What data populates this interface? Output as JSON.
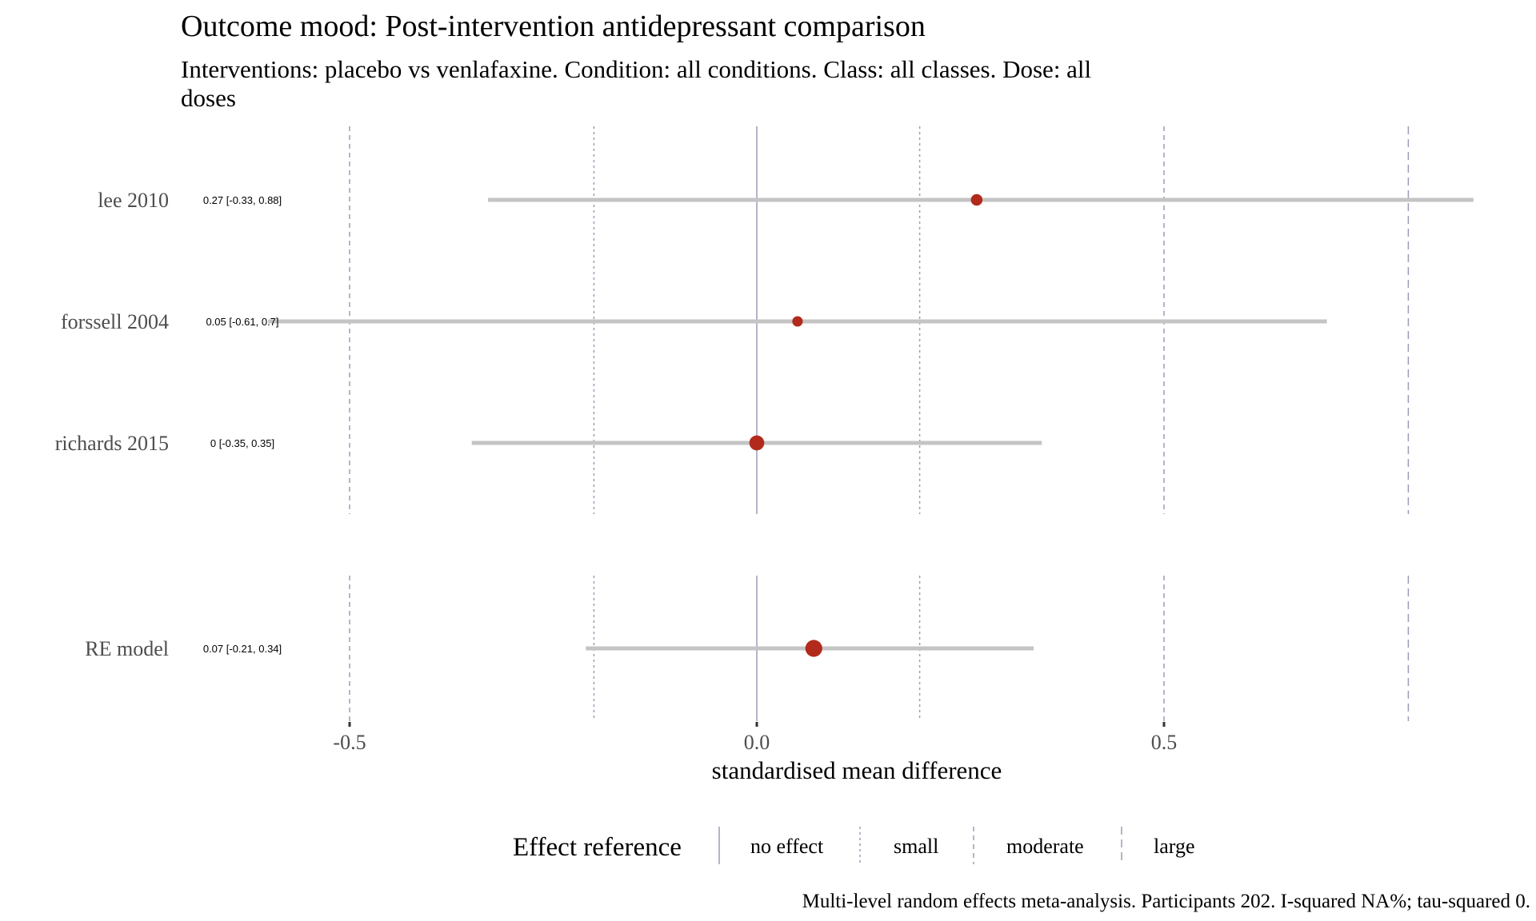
{
  "chart_data": {
    "type": "forest",
    "title": "Outcome mood: Post-intervention antidepressant comparison",
    "subtitle_lines": [
      "Interventions: placebo vs venlafaxine. Condition: all conditions. Class: all classes. Dose: all",
      "doses"
    ],
    "xlabel": "standardised mean difference",
    "xlim": [
      -0.5,
      0.8
    ],
    "x_ticks": [
      {
        "value": -0.5,
        "label": "-0.5"
      },
      {
        "value": 0.0,
        "label": "0.0"
      },
      {
        "value": 0.5,
        "label": "0.5"
      }
    ],
    "studies": [
      {
        "label": "lee 2010",
        "estimate": 0.27,
        "ci_low": -0.33,
        "ci_high": 0.88,
        "ci_text": "0.27 [-0.33, 0.88]",
        "weight": 1
      },
      {
        "label": "forssell 2004",
        "estimate": 0.05,
        "ci_low": -0.61,
        "ci_high": 0.7,
        "ci_text": "0.05 [-0.61, 0.7]",
        "weight": 0.6
      },
      {
        "label": "richards 2015",
        "estimate": 0,
        "ci_low": -0.35,
        "ci_high": 0.35,
        "ci_text": "0 [-0.35, 0.35]",
        "weight": 2.6
      }
    ],
    "summary": {
      "label": "RE model",
      "estimate": 0.07,
      "ci_low": -0.21,
      "ci_high": 0.34,
      "ci_text": "0.07 [-0.21, 0.34]",
      "weight": 4
    },
    "reference_lines": [
      {
        "value": 0,
        "kind": "no effect"
      },
      {
        "value": -0.2,
        "kind": "small"
      },
      {
        "value": 0.2,
        "kind": "small"
      },
      {
        "value": -0.5,
        "kind": "moderate"
      },
      {
        "value": 0.5,
        "kind": "moderate"
      },
      {
        "value": 0.8,
        "kind": "large"
      }
    ],
    "legend": {
      "title": "Effect reference",
      "items": [
        {
          "kind": "no effect",
          "label": "no effect"
        },
        {
          "kind": "small",
          "label": "small"
        },
        {
          "kind": "moderate",
          "label": "moderate"
        },
        {
          "kind": "large",
          "label": "large"
        }
      ]
    },
    "caption": "Multi-level random effects meta-analysis. Participants 202. I-squared NA%; tau-squared 0.",
    "colors": {
      "point": "#b22a1c",
      "ci": "#c4c4c4",
      "reference": "#9a9eb6",
      "label_text": "#4d4d4d"
    }
  }
}
